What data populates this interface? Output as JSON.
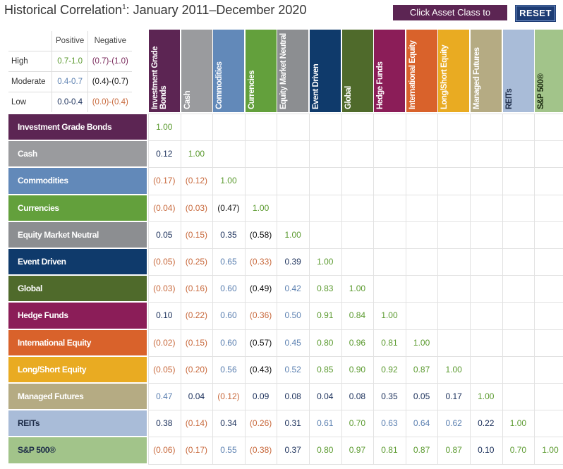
{
  "header": {
    "title": "Historical Correlation",
    "title_sup": "1",
    "title_rest": ": January 2011–December 2020",
    "hint_label": "Click Asset Class to Highlight",
    "reset_label": "RESET"
  },
  "legend": {
    "col_positive": "Positive",
    "col_negative": "Negative",
    "rows": [
      {
        "level": "High",
        "positive": "0.7-1.0",
        "negative": "(0.7)-(1.0)"
      },
      {
        "level": "Moderate",
        "positive": "0.4-0.7",
        "negative": "(0.4)-(0.7)"
      },
      {
        "level": "Low",
        "positive": "0.0-0.4",
        "negative": "(0.0)-(0.4)"
      }
    ]
  },
  "colors": {
    "high_positive": "#5b9a2f",
    "moderate_positive": "#5a7fb0",
    "low_positive": "#1a2f5a",
    "high_negative": "#7a2a5c",
    "moderate_negative": "#111111",
    "low_negative": "#c8693c"
  },
  "chart_data": {
    "type": "table",
    "title": "Historical Correlation: January 2011–December 2020",
    "assets": [
      {
        "name": "Investment Grade Bonds",
        "col_label": "Investment Grade Bonds",
        "color": "#5c2553"
      },
      {
        "name": "Cash",
        "col_label": "Cash",
        "color": "#9a9b9e"
      },
      {
        "name": "Commodities",
        "col_label": "Commodities",
        "color": "#6289b9"
      },
      {
        "name": "Currencies",
        "col_label": "Currencies",
        "color": "#63a03c"
      },
      {
        "name": "Equity Market Neutral",
        "col_label": "Equity Market Neutral",
        "color": "#8c8e91"
      },
      {
        "name": "Event Driven",
        "col_label": "Event Driven",
        "color": "#0f3a6b"
      },
      {
        "name": "Global",
        "col_label": "Global",
        "color": "#4f6a2b"
      },
      {
        "name": "Hedge Funds",
        "col_label": "Hedge Funds",
        "color": "#8b1d58"
      },
      {
        "name": "International Equity",
        "col_label": "International Equity",
        "color": "#d9622b"
      },
      {
        "name": "Long/Short Equity",
        "col_label": "Long/Short Equity",
        "color": "#e9ab22"
      },
      {
        "name": "Managed Futures",
        "col_label": "Managed Futures",
        "color": "#b5ab83"
      },
      {
        "name": "REITs",
        "col_label": "REITs",
        "color": "#a9bcd8"
      },
      {
        "name": "S&P 500®",
        "col_label": "S&P 500®",
        "color": "#a2c48a"
      }
    ],
    "matrix": [
      [
        "1.00"
      ],
      [
        "0.12",
        "1.00"
      ],
      [
        "(0.17)",
        "(0.12)",
        "1.00"
      ],
      [
        "(0.04)",
        "(0.03)",
        "(0.47)",
        "1.00"
      ],
      [
        "0.05",
        "(0.15)",
        "0.35",
        "(0.58)",
        "1.00"
      ],
      [
        "(0.05)",
        "(0.25)",
        "0.65",
        "(0.33)",
        "0.39",
        "1.00"
      ],
      [
        "(0.03)",
        "(0.16)",
        "0.60",
        "(0.49)",
        "0.42",
        "0.83",
        "1.00"
      ],
      [
        "0.10",
        "(0.22)",
        "0.60",
        "(0.36)",
        "0.50",
        "0.91",
        "0.84",
        "1.00"
      ],
      [
        "(0.02)",
        "(0.15)",
        "0.60",
        "(0.57)",
        "0.45",
        "0.80",
        "0.96",
        "0.81",
        "1.00"
      ],
      [
        "(0.05)",
        "(0.20)",
        "0.56",
        "(0.43)",
        "0.52",
        "0.85",
        "0.90",
        "0.92",
        "0.87",
        "1.00"
      ],
      [
        "0.47",
        "0.04",
        "(0.12)",
        "0.09",
        "0.08",
        "0.04",
        "0.08",
        "0.35",
        "0.05",
        "0.17",
        "1.00"
      ],
      [
        "0.38",
        "(0.14)",
        "0.34",
        "(0.26)",
        "0.31",
        "0.61",
        "0.70",
        "0.63",
        "0.64",
        "0.62",
        "0.22",
        "1.00"
      ],
      [
        "(0.06)",
        "(0.17)",
        "0.55",
        "(0.38)",
        "0.37",
        "0.80",
        "0.97",
        "0.81",
        "0.87",
        "0.87",
        "0.10",
        "0.70",
        "1.00"
      ]
    ]
  }
}
